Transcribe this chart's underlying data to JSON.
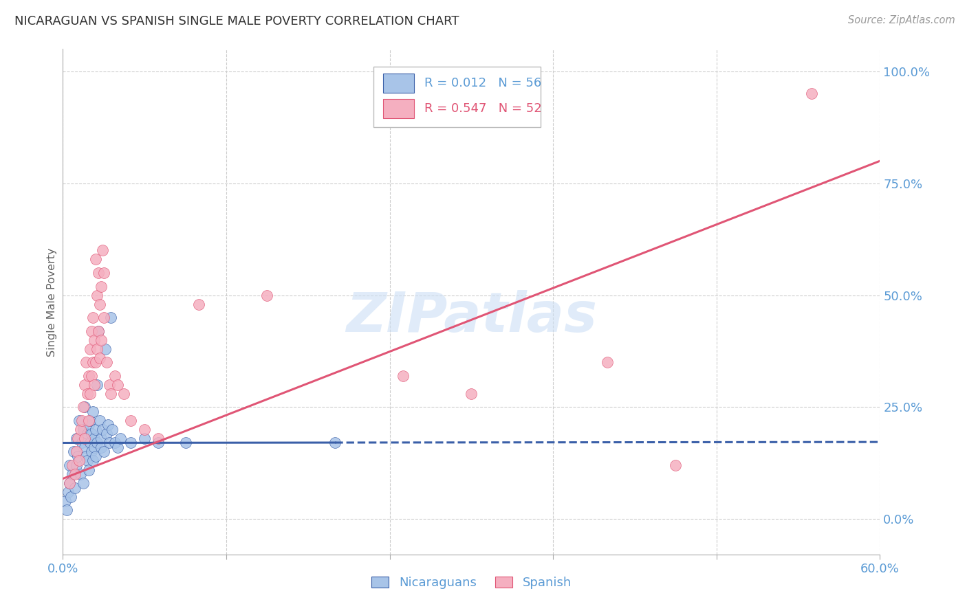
{
  "title": "NICARAGUAN VS SPANISH SINGLE MALE POVERTY CORRELATION CHART",
  "source": "Source: ZipAtlas.com",
  "ylabel": "Single Male Poverty",
  "right_yticks": [
    0.0,
    0.25,
    0.5,
    0.75,
    1.0
  ],
  "right_yticklabels": [
    "0.0%",
    "25.0%",
    "50.0%",
    "75.0%",
    "100.0%"
  ],
  "xmin": 0.0,
  "xmax": 0.6,
  "ymin": -0.08,
  "ymax": 1.05,
  "R_nicaraguan": 0.012,
  "N_nicaraguan": 56,
  "R_spanish": 0.547,
  "N_spanish": 52,
  "color_nicaraguan": "#a8c4e8",
  "color_spanish": "#f5afc0",
  "color_line_nicaraguan": "#3a5fa8",
  "color_line_spanish": "#e05575",
  "color_title": "#333333",
  "color_axis_label": "#666666",
  "color_right_ticks": "#5b9bd5",
  "watermark_text": "ZIPatlas",
  "watermark_color": "#ccdff5",
  "background_color": "#ffffff",
  "grid_color": "#cccccc",
  "nic_line_x0": 0.0,
  "nic_line_y0": 0.17,
  "nic_line_x1": 0.6,
  "nic_line_y1": 0.172,
  "nic_line_solid_end": 0.2,
  "spa_line_x0": 0.0,
  "spa_line_y0": 0.09,
  "spa_line_x1": 0.6,
  "spa_line_y1": 0.8,
  "scatter_nicaraguan": [
    [
      0.002,
      0.04
    ],
    [
      0.003,
      0.02
    ],
    [
      0.004,
      0.06
    ],
    [
      0.005,
      0.08
    ],
    [
      0.005,
      0.12
    ],
    [
      0.006,
      0.05
    ],
    [
      0.007,
      0.1
    ],
    [
      0.008,
      0.15
    ],
    [
      0.009,
      0.07
    ],
    [
      0.01,
      0.18
    ],
    [
      0.01,
      0.12
    ],
    [
      0.011,
      0.14
    ],
    [
      0.012,
      0.22
    ],
    [
      0.013,
      0.1
    ],
    [
      0.014,
      0.17
    ],
    [
      0.015,
      0.08
    ],
    [
      0.015,
      0.2
    ],
    [
      0.016,
      0.25
    ],
    [
      0.016,
      0.16
    ],
    [
      0.017,
      0.14
    ],
    [
      0.018,
      0.19
    ],
    [
      0.018,
      0.13
    ],
    [
      0.019,
      0.11
    ],
    [
      0.019,
      0.21
    ],
    [
      0.02,
      0.17
    ],
    [
      0.02,
      0.22
    ],
    [
      0.021,
      0.15
    ],
    [
      0.021,
      0.19
    ],
    [
      0.022,
      0.13
    ],
    [
      0.022,
      0.24
    ],
    [
      0.023,
      0.18
    ],
    [
      0.023,
      0.16
    ],
    [
      0.024,
      0.2
    ],
    [
      0.024,
      0.14
    ],
    [
      0.025,
      0.3
    ],
    [
      0.025,
      0.17
    ],
    [
      0.026,
      0.42
    ],
    [
      0.027,
      0.22
    ],
    [
      0.028,
      0.18
    ],
    [
      0.028,
      0.16
    ],
    [
      0.029,
      0.2
    ],
    [
      0.03,
      0.15
    ],
    [
      0.031,
      0.38
    ],
    [
      0.032,
      0.19
    ],
    [
      0.033,
      0.21
    ],
    [
      0.034,
      0.17
    ],
    [
      0.035,
      0.45
    ],
    [
      0.036,
      0.2
    ],
    [
      0.038,
      0.17
    ],
    [
      0.04,
      0.16
    ],
    [
      0.042,
      0.18
    ],
    [
      0.05,
      0.17
    ],
    [
      0.06,
      0.18
    ],
    [
      0.07,
      0.17
    ],
    [
      0.09,
      0.17
    ],
    [
      0.2,
      0.17
    ]
  ],
  "scatter_spanish": [
    [
      0.005,
      0.08
    ],
    [
      0.007,
      0.12
    ],
    [
      0.009,
      0.1
    ],
    [
      0.01,
      0.15
    ],
    [
      0.011,
      0.18
    ],
    [
      0.012,
      0.13
    ],
    [
      0.013,
      0.2
    ],
    [
      0.014,
      0.22
    ],
    [
      0.015,
      0.25
    ],
    [
      0.016,
      0.3
    ],
    [
      0.016,
      0.18
    ],
    [
      0.017,
      0.35
    ],
    [
      0.018,
      0.28
    ],
    [
      0.019,
      0.32
    ],
    [
      0.019,
      0.22
    ],
    [
      0.02,
      0.38
    ],
    [
      0.02,
      0.28
    ],
    [
      0.021,
      0.42
    ],
    [
      0.021,
      0.32
    ],
    [
      0.022,
      0.45
    ],
    [
      0.022,
      0.35
    ],
    [
      0.023,
      0.4
    ],
    [
      0.023,
      0.3
    ],
    [
      0.024,
      0.58
    ],
    [
      0.024,
      0.35
    ],
    [
      0.025,
      0.5
    ],
    [
      0.025,
      0.38
    ],
    [
      0.026,
      0.55
    ],
    [
      0.026,
      0.42
    ],
    [
      0.027,
      0.48
    ],
    [
      0.027,
      0.36
    ],
    [
      0.028,
      0.52
    ],
    [
      0.028,
      0.4
    ],
    [
      0.029,
      0.6
    ],
    [
      0.03,
      0.55
    ],
    [
      0.03,
      0.45
    ],
    [
      0.032,
      0.35
    ],
    [
      0.034,
      0.3
    ],
    [
      0.035,
      0.28
    ],
    [
      0.038,
      0.32
    ],
    [
      0.04,
      0.3
    ],
    [
      0.045,
      0.28
    ],
    [
      0.05,
      0.22
    ],
    [
      0.06,
      0.2
    ],
    [
      0.07,
      0.18
    ],
    [
      0.1,
      0.48
    ],
    [
      0.15,
      0.5
    ],
    [
      0.25,
      0.32
    ],
    [
      0.3,
      0.28
    ],
    [
      0.4,
      0.35
    ],
    [
      0.45,
      0.12
    ],
    [
      0.55,
      0.95
    ]
  ]
}
